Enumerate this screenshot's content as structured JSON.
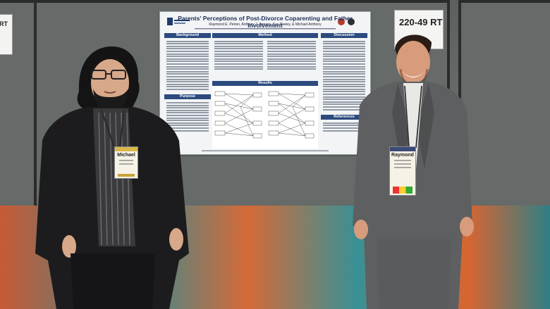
{
  "signs": {
    "left_fragment": "RT",
    "room": "220-49 RT"
  },
  "poster": {
    "title": "Parents' Perceptions of Post-Divorce Coparenting and Father Involvement",
    "authors": "Raymond E. Petren, Anthony J. Ferraro, Kay Pasley, & Michael Anthony",
    "sections": {
      "background": "Background",
      "method": "Method",
      "discussion": "Discussion",
      "purpose": "Purpose",
      "results": "Results",
      "references": "References"
    }
  },
  "badges": {
    "left_name": "Michael",
    "right_name": "Raymond"
  },
  "colors": {
    "poster_header": "#2c4a7e",
    "badge_band": "#d9b84a",
    "carpet_orange": "#e6773b",
    "carpet_teal": "#2f8c8f"
  }
}
